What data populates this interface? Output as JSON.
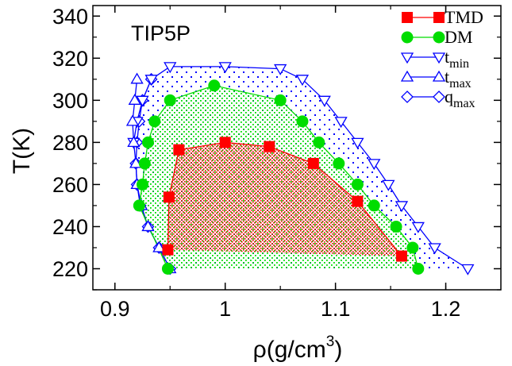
{
  "chart_data": {
    "type": "line",
    "inset_label": "TIP5P",
    "xlabel": "ρ(g/cm",
    "xlabel_sup": "3",
    "xlabel_close": ")",
    "ylabel": "T(K)",
    "xlim": [
      0.88,
      1.25
    ],
    "ylim": [
      210,
      345
    ],
    "xticks": [
      0.9,
      1.0,
      1.1,
      1.2
    ],
    "xtick_labels": [
      "0.9",
      "1",
      "1.1",
      "1.2"
    ],
    "yticks": [
      220,
      240,
      260,
      280,
      300,
      320,
      340
    ],
    "ytick_labels": [
      "220",
      "240",
      "260",
      "280",
      "300",
      "320",
      "340"
    ],
    "grid": false,
    "legend_position": "top-right",
    "series": [
      {
        "name": "TMD",
        "color": "#ff0000",
        "marker": "square-filled",
        "fill": "dense-dots",
        "points": [
          [
            0.948,
            229
          ],
          [
            0.949,
            254
          ],
          [
            0.958,
            276.5
          ],
          [
            1.0,
            280
          ],
          [
            1.04,
            278
          ],
          [
            1.08,
            270
          ],
          [
            1.12,
            252
          ],
          [
            1.16,
            226
          ]
        ]
      },
      {
        "name": "DM",
        "color": "#00dd00",
        "marker": "circle-filled",
        "fill": "sparse-dots",
        "points": [
          [
            0.948,
            220
          ],
          [
            0.922,
            250
          ],
          [
            0.925,
            260
          ],
          [
            0.927,
            270
          ],
          [
            0.93,
            280
          ],
          [
            0.936,
            290
          ],
          [
            0.95,
            300
          ],
          [
            0.99,
            307
          ],
          [
            1.05,
            300
          ],
          [
            1.07,
            290
          ],
          [
            1.085,
            280
          ],
          [
            1.103,
            270
          ],
          [
            1.12,
            260
          ],
          [
            1.135,
            250
          ],
          [
            1.155,
            240
          ],
          [
            1.17,
            230
          ],
          [
            1.175,
            220
          ]
        ]
      },
      {
        "name": "t",
        "sub": "min",
        "color": "#0000ff",
        "marker": "triangle-down-open",
        "fill": "blue-dots",
        "points": [
          [
            0.917,
            280
          ],
          [
            0.92,
            290
          ],
          [
            0.925,
            300
          ],
          [
            0.933,
            310
          ],
          [
            0.95,
            316
          ],
          [
            1.0,
            316
          ],
          [
            1.05,
            315
          ],
          [
            1.07,
            310
          ],
          [
            1.09,
            300
          ],
          [
            1.105,
            290
          ],
          [
            1.12,
            280
          ],
          [
            1.135,
            270
          ],
          [
            1.148,
            260
          ],
          [
            1.16,
            250
          ],
          [
            1.175,
            240
          ],
          [
            1.19,
            230
          ],
          [
            1.22,
            220
          ]
        ]
      },
      {
        "name": "t",
        "sub": "max",
        "color": "#0000ff",
        "marker": "triangle-up-open",
        "points": [
          [
            0.95,
            220
          ],
          [
            0.94,
            230
          ],
          [
            0.93,
            240
          ],
          [
            0.924,
            250
          ],
          [
            0.92,
            260
          ],
          [
            0.919,
            270
          ],
          [
            0.917,
            280
          ],
          [
            0.916,
            290
          ],
          [
            0.918,
            300
          ],
          [
            0.92,
            310
          ]
        ]
      },
      {
        "name": "q",
        "sub": "max",
        "color": "#0000ff",
        "marker": "diamond-open",
        "points": [
          [
            0.95,
            220
          ],
          [
            0.94,
            230
          ],
          [
            0.93,
            240
          ],
          [
            0.923,
            250
          ],
          [
            0.92,
            260
          ],
          [
            0.919,
            270
          ],
          [
            0.92,
            280
          ],
          [
            0.922,
            290
          ],
          [
            0.925,
            300
          ],
          [
            0.933,
            310
          ]
        ]
      }
    ]
  }
}
